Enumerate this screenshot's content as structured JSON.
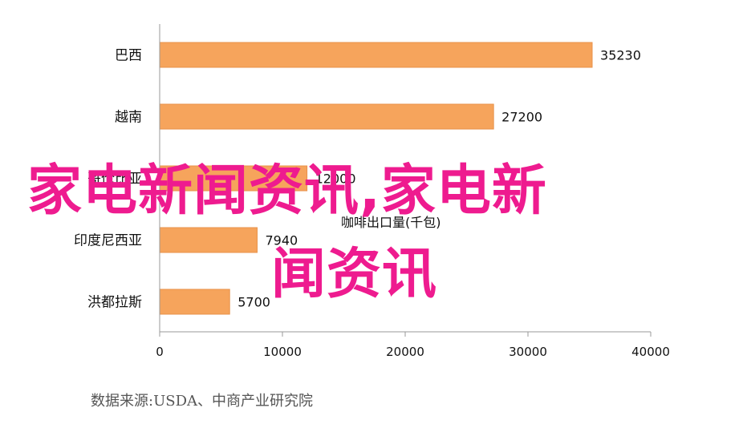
{
  "chart_data": {
    "type": "bar",
    "orientation": "horizontal",
    "categories": [
      "巴西",
      "越南",
      "哥伦比亚",
      "印度尼西亚",
      "洪都拉斯"
    ],
    "values": [
      35230,
      27200,
      12000,
      7940,
      5700
    ],
    "data_labels": [
      "35230",
      "27200",
      "12000",
      "7940",
      "5700"
    ],
    "annotation": "咖啡出口量(千包)",
    "xlim": [
      0,
      40000
    ],
    "xticks": [
      0,
      10000,
      20000,
      30000,
      40000
    ],
    "xtick_labels": [
      "0",
      "10000",
      "20000",
      "30000",
      "40000"
    ],
    "bar_color": "#f6a45c",
    "grid": false,
    "legend": "none"
  },
  "source": "数据来源:USDA、中商产业研究院",
  "watermark": {
    "line1": "家电新闻资讯,家电新",
    "line2": "闻资讯",
    "color": "#ee1b8f"
  }
}
